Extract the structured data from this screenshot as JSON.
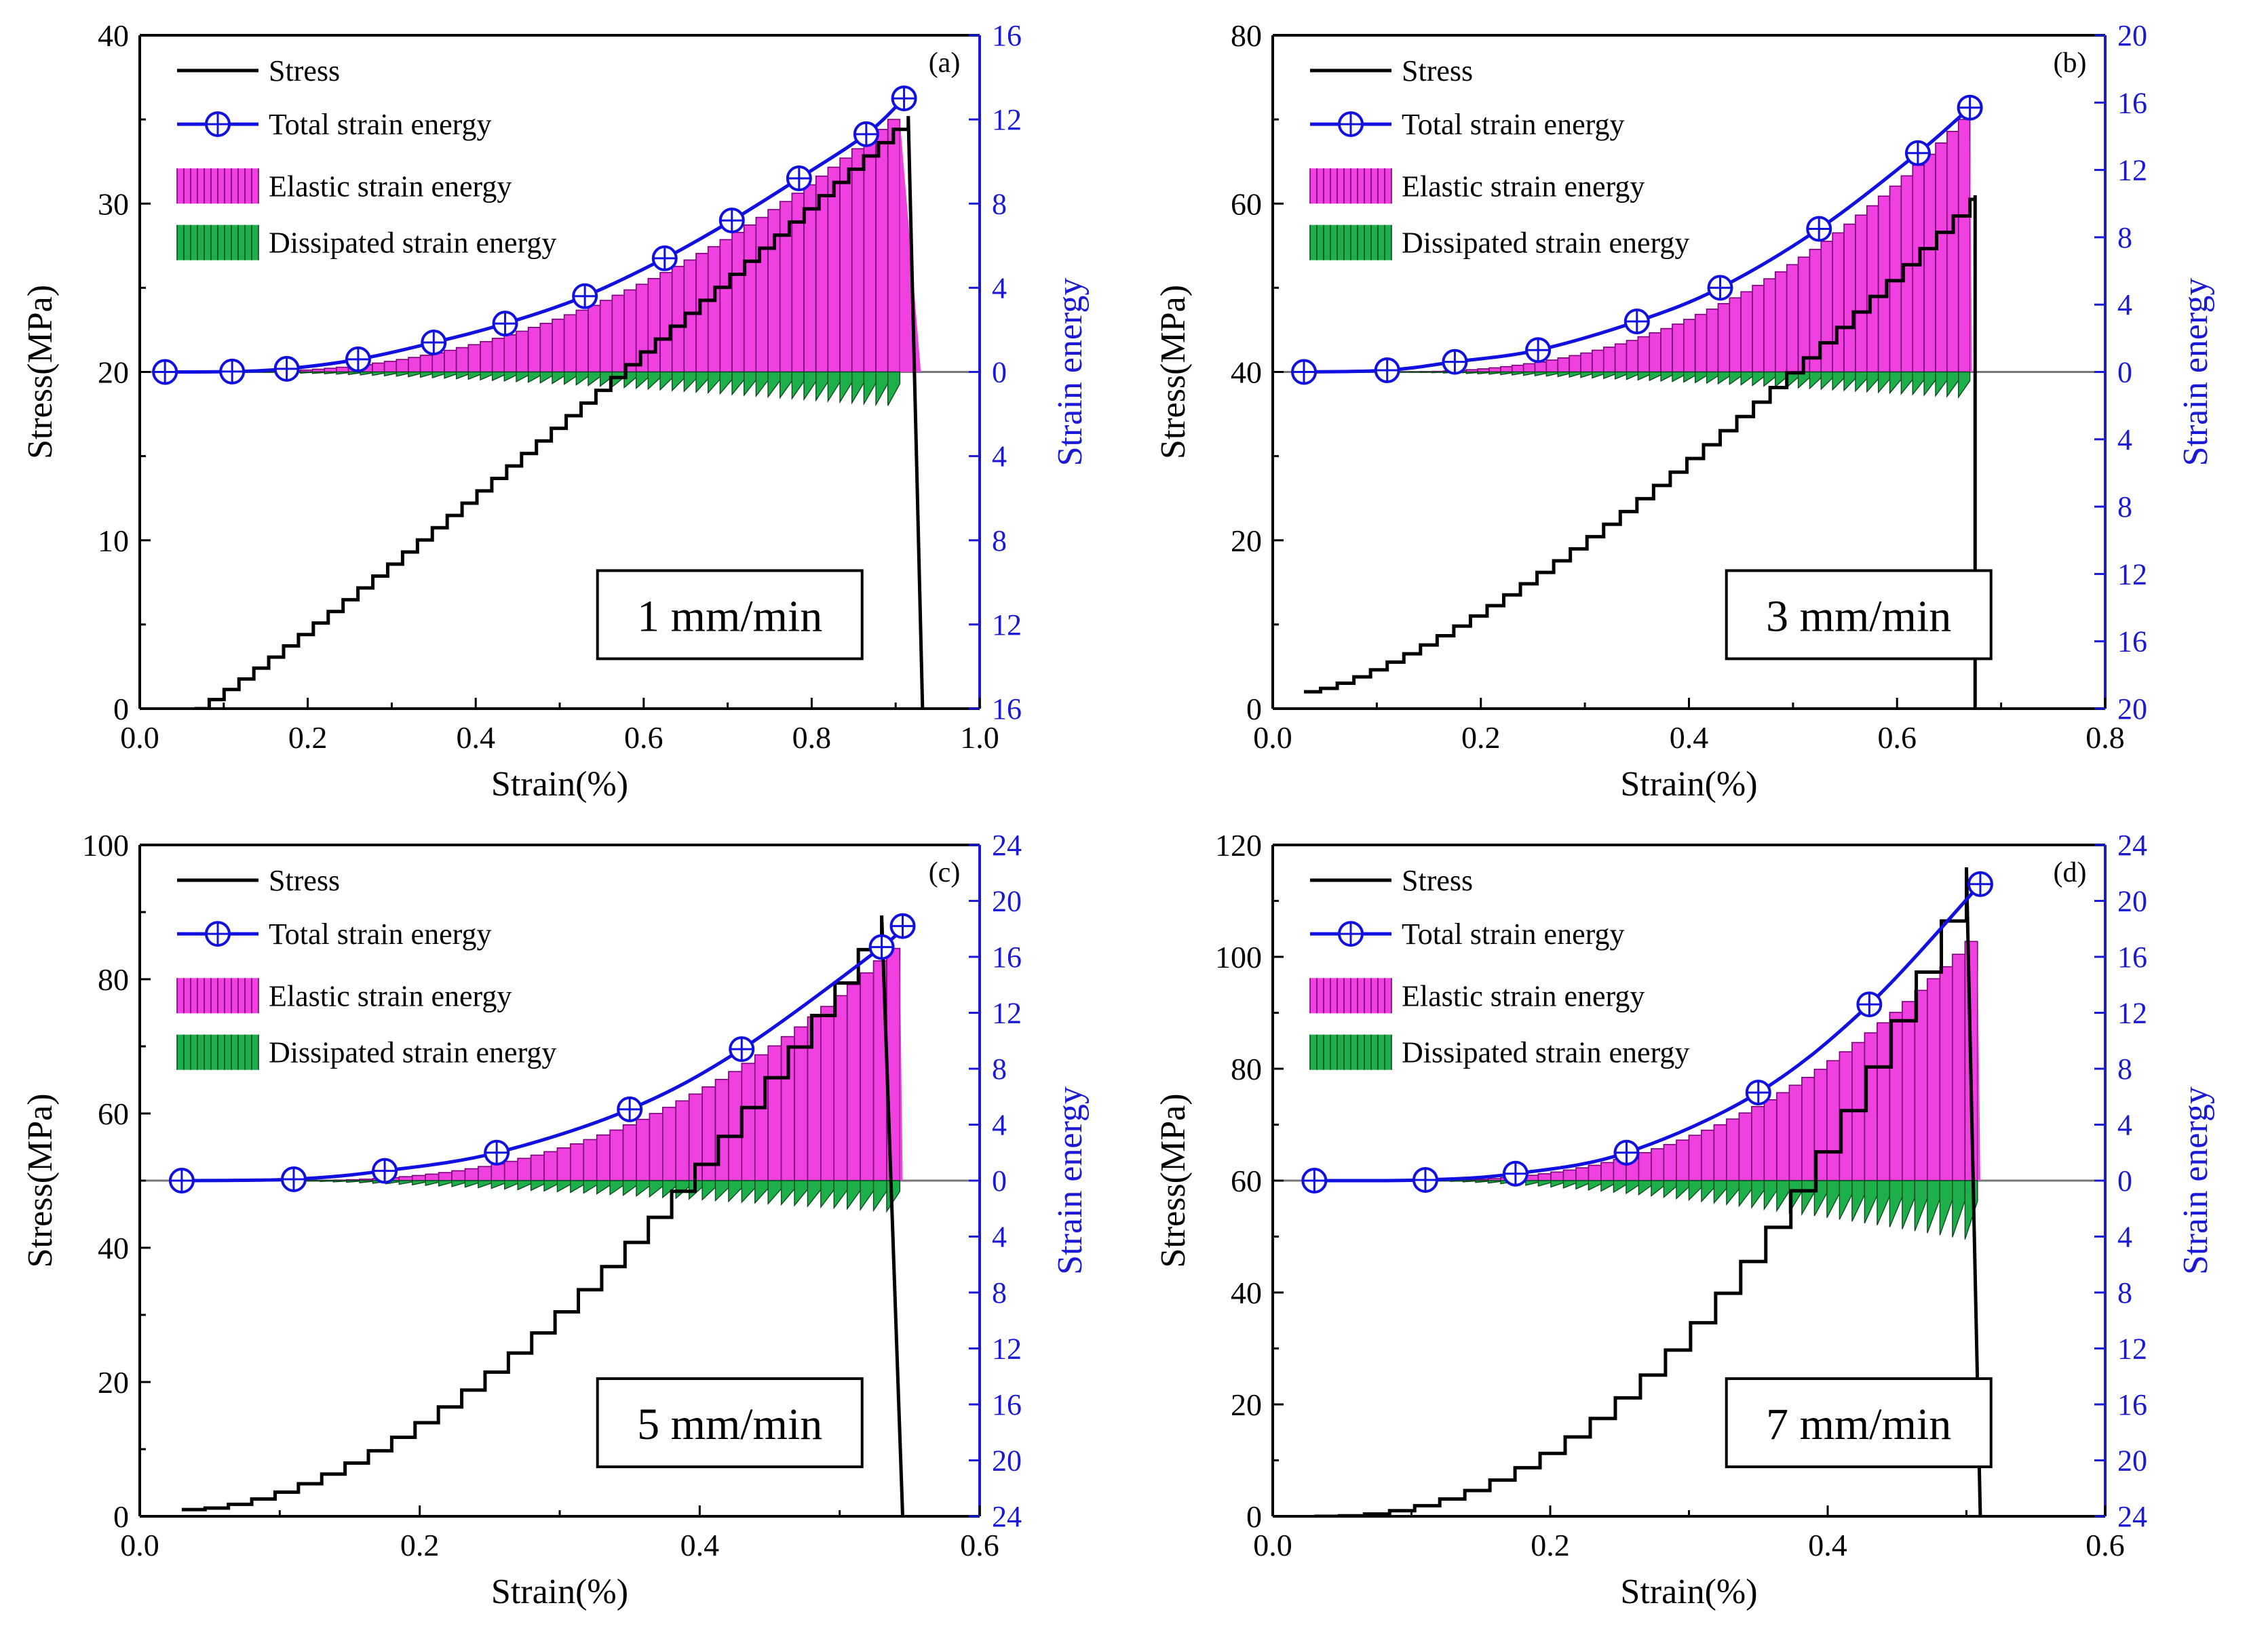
{
  "colors": {
    "stress": "#000000",
    "total": "#1010e0",
    "elastic": "#f040e0",
    "elastic_line": "#7a007a",
    "dissipated": "#1db04a",
    "dissipated_line": "#0b4a1e",
    "right_axis": "#1a1ad6"
  },
  "legend": {
    "stress": "Stress",
    "total": "Total strain energy",
    "elastic": "Elastic strain energy",
    "dissipated": "Dissipated strain energy"
  },
  "chart_data": [
    {
      "id": "a",
      "type": "line",
      "panel_label": "(a)",
      "rate_label": "1 mm/min",
      "xlabel": "Strain(%)",
      "ylabel": "Stress(MPa)",
      "y2label": "Strain energy",
      "xlim": [
        0.0,
        1.0
      ],
      "xticks": [
        "0.0",
        "0.2",
        "0.4",
        "0.6",
        "0.8",
        "1.0"
      ],
      "ylim": [
        0,
        40
      ],
      "yticks": [
        "0",
        "10",
        "20",
        "30",
        "40"
      ],
      "y2_ticks_top": [
        "16",
        "12",
        "8",
        "4",
        "0"
      ],
      "y2_ticks_bottom": [
        "4",
        "8",
        "12",
        "16"
      ],
      "y2_max": 16,
      "stress": {
        "x_start": 0.065,
        "x_peak": 0.915,
        "peak": 35.2,
        "exponent": 1.08,
        "steps": 48,
        "drop_x": 0.932,
        "drop_to": 0
      },
      "total_energy_markers": {
        "x": [
          0.03,
          0.11,
          0.175,
          0.26,
          0.35,
          0.435,
          0.53,
          0.625,
          0.705,
          0.785,
          0.865,
          0.91
        ],
        "y": [
          0,
          0.02,
          0.15,
          0.6,
          1.4,
          2.3,
          3.6,
          5.4,
          7.2,
          9.2,
          11.3,
          13.0
        ]
      },
      "elastic": {
        "x_start": 0.12,
        "x_end": 0.905,
        "bars": 55,
        "peak": 12.0,
        "exponent": 2.2,
        "drop_x": 0.93
      },
      "dissipated": {
        "x_start": 0.12,
        "x_end": 0.905,
        "bars": 55,
        "max": 1.6,
        "exponent": 1.5
      }
    },
    {
      "id": "b",
      "type": "line",
      "panel_label": "(b)",
      "rate_label": "3 mm/min",
      "xlabel": "Strain(%)",
      "ylabel": "Stress(MPa)",
      "y2label": "Strain energy",
      "xlim": [
        0.0,
        0.8
      ],
      "xticks": [
        "0.0",
        "0.2",
        "0.4",
        "0.6",
        "0.8"
      ],
      "ylim": [
        0,
        80
      ],
      "yticks": [
        "0",
        "20",
        "40",
        "60",
        "80"
      ],
      "y2_ticks_top": [
        "20",
        "16",
        "12",
        "8",
        "4",
        "0"
      ],
      "y2_ticks_bottom": [
        "4",
        "8",
        "12",
        "16",
        "20"
      ],
      "y2_max": 20,
      "stress": {
        "x_start": 0.03,
        "x_peak": 0.67,
        "peak": 60.5,
        "exponent": 1.35,
        "steps": 40,
        "y0": 2,
        "drop_x": 0.675,
        "drop_to": 0,
        "spike": 61
      },
      "total_energy_markers": {
        "x": [
          0.03,
          0.11,
          0.175,
          0.255,
          0.35,
          0.43,
          0.525,
          0.62,
          0.67
        ],
        "y": [
          0,
          0.1,
          0.6,
          1.3,
          3.0,
          5.0,
          8.5,
          13.0,
          15.7
        ]
      },
      "elastic": {
        "x_start": 0.12,
        "x_end": 0.67,
        "bars": 50,
        "peak": 15.0,
        "exponent": 2.4,
        "drop_x": 0.672
      },
      "dissipated": {
        "x_start": 0.12,
        "x_end": 0.67,
        "bars": 50,
        "max": 1.5,
        "exponent": 1.4
      }
    },
    {
      "id": "c",
      "type": "line",
      "panel_label": "(c)",
      "rate_label": "5 mm/min",
      "xlabel": "Strain(%)",
      "ylabel": "Stress(MPa)",
      "y2label": "Strain energy",
      "xlim": [
        0.0,
        0.6
      ],
      "xticks": [
        "0.0",
        "0.2",
        "0.4",
        "0.6"
      ],
      "ylim": [
        0,
        100
      ],
      "yticks": [
        "0",
        "20",
        "40",
        "60",
        "80",
        "100"
      ],
      "y2_ticks_top": [
        "24",
        "20",
        "16",
        "12",
        "8",
        "4",
        "0"
      ],
      "y2_ticks_bottom": [
        "4",
        "8",
        "12",
        "16",
        "20",
        "24"
      ],
      "y2_max": 24,
      "stress": {
        "x_start": 0.03,
        "x_peak": 0.53,
        "peak": 89.5,
        "exponent": 1.75,
        "steps": 30,
        "y0": 1,
        "drop_x": 0.545,
        "drop_to": 0
      },
      "total_energy_markers": {
        "x": [
          0.03,
          0.11,
          0.175,
          0.255,
          0.35,
          0.43,
          0.53,
          0.545
        ],
        "y": [
          0,
          0.1,
          0.7,
          2.0,
          5.1,
          9.4,
          16.7,
          18.2
        ]
      },
      "elastic": {
        "x_start": 0.11,
        "x_end": 0.543,
        "bars": 46,
        "peak": 16.6,
        "exponent": 2.5,
        "drop_x": 0.545
      },
      "dissipated": {
        "x_start": 0.11,
        "x_end": 0.543,
        "bars": 46,
        "max": 2.2,
        "exponent": 1.3
      }
    },
    {
      "id": "d",
      "type": "line",
      "panel_label": "(d)",
      "rate_label": "7 mm/min",
      "xlabel": "Strain(%)",
      "ylabel": "Stress(MPa)",
      "y2label": "Strain energy",
      "xlim": [
        0.0,
        0.6
      ],
      "xticks": [
        "0.0",
        "0.2",
        "0.4",
        "0.6"
      ],
      "ylim": [
        0,
        120
      ],
      "yticks": [
        "0",
        "20",
        "40",
        "60",
        "80",
        "100",
        "120"
      ],
      "y2_ticks_top": [
        "24",
        "20",
        "16",
        "12",
        "8",
        "4",
        "0"
      ],
      "y2_ticks_bottom": [
        "4",
        "8",
        "12",
        "16",
        "20",
        "24"
      ],
      "y2_max": 24,
      "stress": {
        "x_start": 0.03,
        "x_peak": 0.5,
        "peak": 116,
        "exponent": 2.2,
        "steps": 26,
        "y0": 0,
        "drop_x": 0.51,
        "drop_to": 0
      },
      "total_energy_markers": {
        "x": [
          0.03,
          0.11,
          0.175,
          0.255,
          0.35,
          0.43,
          0.51
        ],
        "y": [
          0,
          0.05,
          0.5,
          2.0,
          6.3,
          12.6,
          21.2
        ]
      },
      "elastic": {
        "x_start": 0.11,
        "x_end": 0.508,
        "bars": 44,
        "peak": 17.1,
        "exponent": 2.4,
        "drop_x": 0.51
      },
      "dissipated": {
        "x_start": 0.11,
        "x_end": 0.508,
        "bars": 44,
        "max": 4.2,
        "exponent": 1.6
      }
    }
  ]
}
